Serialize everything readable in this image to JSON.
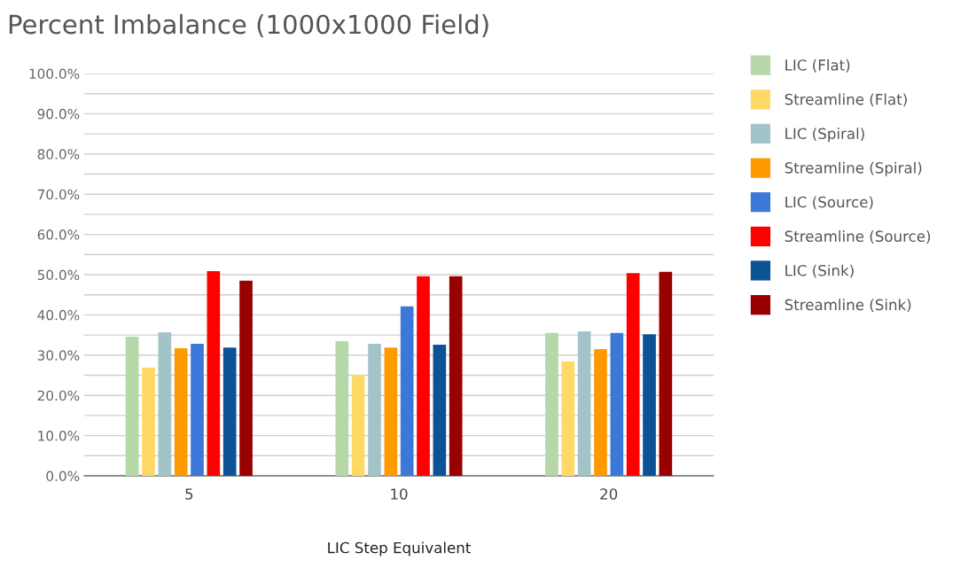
{
  "chart_data": {
    "type": "bar",
    "title": "Percent Imbalance (1000x1000 Field)",
    "xlabel": "LIC Step Equivalent",
    "categories": [
      "5",
      "10",
      "20"
    ],
    "series": [
      {
        "name": "LIC (Flat)",
        "color": "#b6d7a8",
        "values": [
          34.6,
          33.5,
          35.5
        ]
      },
      {
        "name": "Streamline (Flat)",
        "color": "#ffd966",
        "values": [
          26.9,
          25.1,
          28.4
        ]
      },
      {
        "name": "LIC (Spiral)",
        "color": "#a2c4c9",
        "values": [
          35.7,
          32.8,
          35.9
        ]
      },
      {
        "name": "Streamline (Spiral)",
        "color": "#ff9900",
        "values": [
          31.7,
          31.9,
          31.5
        ]
      },
      {
        "name": "LIC (Source)",
        "color": "#3c78d8",
        "values": [
          32.8,
          42.1,
          35.5
        ]
      },
      {
        "name": "Streamline (Source)",
        "color": "#ff0000",
        "values": [
          50.9,
          49.6,
          50.4
        ]
      },
      {
        "name": "LIC (Sink)",
        "color": "#0b5394",
        "values": [
          31.9,
          32.6,
          35.2
        ]
      },
      {
        "name": "Streamline (Sink)",
        "color": "#990000",
        "values": [
          48.5,
          49.6,
          50.7
        ]
      }
    ],
    "ylim": [
      0,
      100
    ],
    "yticks": [
      {
        "value": 0,
        "label": "0.0%"
      },
      {
        "value": 5,
        "label": null
      },
      {
        "value": 10,
        "label": "10.0%"
      },
      {
        "value": 15,
        "label": null
      },
      {
        "value": 20,
        "label": "20.0%"
      },
      {
        "value": 25,
        "label": null
      },
      {
        "value": 30,
        "label": "30.0%"
      },
      {
        "value": 35,
        "label": null
      },
      {
        "value": 40,
        "label": "40.0%"
      },
      {
        "value": 45,
        "label": null
      },
      {
        "value": 50,
        "label": "50.0%"
      },
      {
        "value": 55,
        "label": null
      },
      {
        "value": 60,
        "label": "60.0%"
      },
      {
        "value": 65,
        "label": null
      },
      {
        "value": 70,
        "label": "70.0%"
      },
      {
        "value": 75,
        "label": null
      },
      {
        "value": 80,
        "label": "80.0%"
      },
      {
        "value": 85,
        "label": null
      },
      {
        "value": 90,
        "label": "90.0%"
      },
      {
        "value": 95,
        "label": null
      },
      {
        "value": 100,
        "label": "100.0%"
      }
    ],
    "grid": "y",
    "legend": "right",
    "marker": "square"
  }
}
